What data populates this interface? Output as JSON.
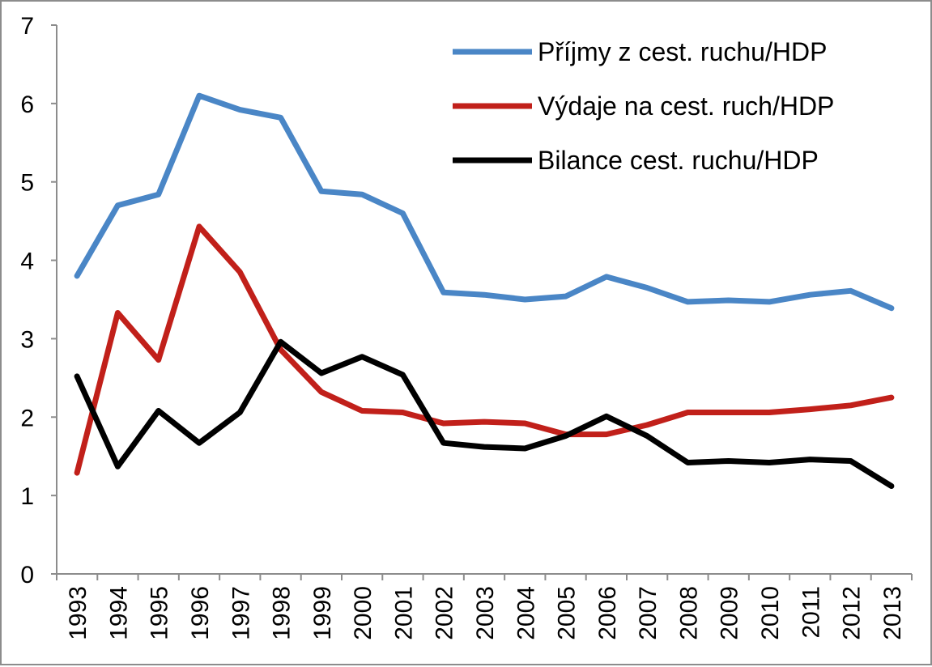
{
  "chart_data": {
    "type": "line",
    "categories": [
      "1993",
      "1994",
      "1995",
      "1996",
      "1997",
      "1998",
      "1999",
      "2000",
      "2001",
      "2002",
      "2003",
      "2004",
      "2005",
      "2006",
      "2007",
      "2008",
      "2009",
      "2010",
      "2011",
      "2012",
      "2013"
    ],
    "series": [
      {
        "name": "Příjmy z cest. ruchu/HDP",
        "color": "#4a86c6",
        "values": [
          3.8,
          4.7,
          4.84,
          6.1,
          5.92,
          5.82,
          4.88,
          4.84,
          4.6,
          3.59,
          3.56,
          3.5,
          3.54,
          3.79,
          3.65,
          3.47,
          3.49,
          3.47,
          3.56,
          3.61,
          3.39
        ]
      },
      {
        "name": "Výdaje na cest. ruch/HDP",
        "color": "#c1201a",
        "values": [
          1.29,
          3.33,
          2.73,
          4.43,
          3.85,
          2.86,
          2.32,
          2.08,
          2.06,
          1.92,
          1.94,
          1.92,
          1.78,
          1.78,
          1.9,
          2.06,
          2.06,
          2.06,
          2.1,
          2.15,
          2.25
        ]
      },
      {
        "name": "Bilance cest. ruchu/HDP",
        "color": "#000000",
        "values": [
          2.52,
          1.37,
          2.08,
          1.67,
          2.06,
          2.96,
          2.56,
          2.77,
          2.54,
          1.67,
          1.62,
          1.6,
          1.76,
          2.01,
          1.76,
          1.42,
          1.44,
          1.42,
          1.46,
          1.44,
          1.12
        ]
      }
    ],
    "yticks": [
      "0",
      "1",
      "2",
      "3",
      "4",
      "5",
      "6",
      "7"
    ],
    "ylim": [
      0,
      7
    ],
    "title": "",
    "xlabel": "",
    "ylabel": "",
    "grid": false,
    "legend_position": "top-right"
  }
}
